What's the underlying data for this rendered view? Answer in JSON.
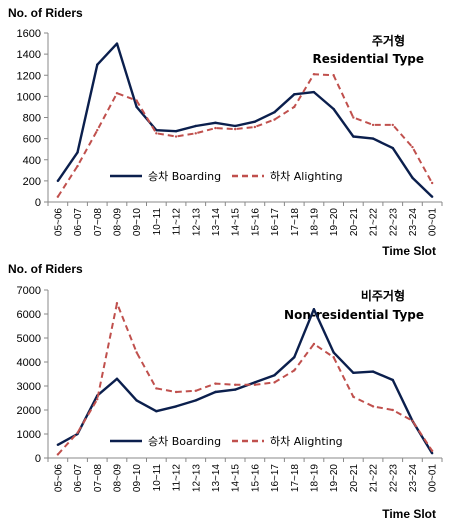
{
  "chart_data": [
    {
      "type": "line",
      "title_ko": "주거형",
      "title_en": "Residential Type",
      "ylabel": "No. of Riders",
      "xlabel": "Time Slot",
      "ylim": [
        0,
        1600
      ],
      "yticks": [
        "0",
        "200",
        "400",
        "600",
        "800",
        "1000",
        "1200",
        "1400",
        "1600"
      ],
      "categories": [
        "05~06",
        "06~07",
        "07~08",
        "08~09",
        "09~10",
        "10~11",
        "11~12",
        "12~13",
        "13~14",
        "14~15",
        "15~16",
        "16~17",
        "17~18",
        "18~19",
        "19~20",
        "20~21",
        "21~22",
        "22~23",
        "23~24",
        "00~01"
      ],
      "series": [
        {
          "name": "승차 Boarding",
          "color": "#0b1f4d",
          "dash": false,
          "values": [
            200,
            470,
            1300,
            1500,
            900,
            680,
            670,
            720,
            750,
            720,
            760,
            850,
            1020,
            1040,
            880,
            620,
            600,
            510,
            230,
            50
          ]
        },
        {
          "name": "하차 Alighting",
          "color": "#c0504d",
          "dash": true,
          "values": [
            50,
            340,
            680,
            1030,
            960,
            650,
            620,
            650,
            700,
            690,
            710,
            780,
            900,
            1210,
            1200,
            800,
            730,
            730,
            520,
            180
          ]
        }
      ],
      "legend": "bottom-center"
    },
    {
      "type": "line",
      "title_ko": "비주거형",
      "title_en": "Non-residential Type",
      "ylabel": "No. of Riders",
      "xlabel": "Time Slot",
      "ylim": [
        0,
        7000
      ],
      "yticks": [
        "0",
        "1000",
        "2000",
        "3000",
        "4000",
        "5000",
        "6000",
        "7000"
      ],
      "categories": [
        "05~06",
        "06~07",
        "07~08",
        "08~09",
        "09~10",
        "10~11",
        "11~12",
        "12~13",
        "13~14",
        "14~15",
        "15~16",
        "16~17",
        "17~18",
        "18~19",
        "19~20",
        "20~21",
        "21~22",
        "22~23",
        "23~24",
        "00~01"
      ],
      "series": [
        {
          "name": "승차 Boarding",
          "color": "#0b1f4d",
          "dash": false,
          "values": [
            550,
            1000,
            2600,
            3300,
            2400,
            1950,
            2150,
            2400,
            2750,
            2850,
            3150,
            3450,
            4200,
            6200,
            4400,
            3550,
            3600,
            3250,
            1550,
            200
          ]
        },
        {
          "name": "하차 Alighting",
          "color": "#c0504d",
          "dash": true,
          "values": [
            150,
            1050,
            2450,
            6450,
            4400,
            2900,
            2750,
            2800,
            3100,
            3050,
            3050,
            3150,
            3650,
            4750,
            4200,
            2550,
            2150,
            2000,
            1550,
            300
          ]
        }
      ],
      "legend": "bottom-center"
    }
  ]
}
